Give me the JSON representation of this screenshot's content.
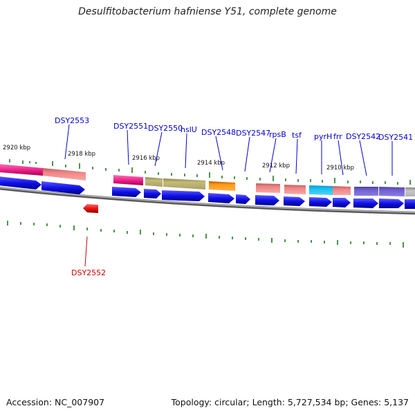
{
  "title": "Desulfitobacterium hafniense Y51, complete genome",
  "footer": {
    "accession": "Accession: NC_007907",
    "summary": "Topology: circular; Length: 5,727,534 bp; Genes: 5,137"
  },
  "colors": {
    "cds": "#1010e8",
    "cds_reverse": "#ee1111",
    "label_forward": "#0000cc",
    "label_reverse": "#cc0000",
    "tick": "#1a7a1a",
    "backbone": "#888888"
  },
  "scale_labels": [
    "2920 kbp",
    "2918 kbp",
    "2916 kbp",
    "2914 kbp",
    "2912 kbp",
    "2910 kbp"
  ],
  "genes_forward": [
    "DSY2553",
    "DSY2551",
    "DSY2550",
    "hslU",
    "DSY2548",
    "DSY2547",
    "rpsB",
    "tsf",
    "pyrH",
    "frr",
    "DSY2542",
    "DSY2541"
  ],
  "genes_reverse": [
    "DSY2552"
  ]
}
